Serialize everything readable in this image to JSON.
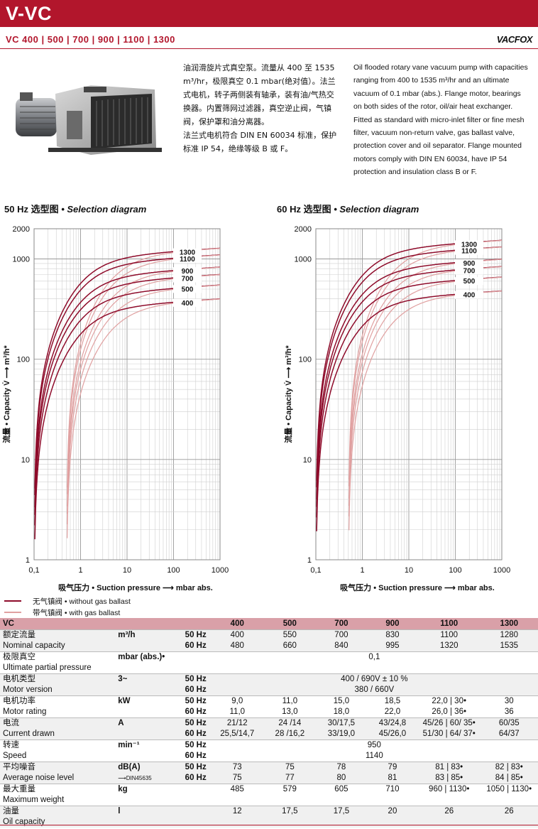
{
  "header": {
    "title": "V-VC",
    "models": "VC 400  |  500  |  700  |  900  |  1100  |  1300",
    "logo": "VACFOX"
  },
  "desc_cn": [
    "油润滑旋片式真空泵。流量从 400 至 1535 m³/hr，极限真空 0.1 mbar(绝对值）。法兰式电机，转子两侧装有轴承，装有油/气热交换器。内置筛网过滤器，真空逆止阀，气镇阀，保护罩和油分离器。",
    "法兰式电机符合 DIN  EN  60034 标准，保护标准 IP 54，绝缘等级 B 或 F。"
  ],
  "desc_en": "Oil flooded rotary vane vacuum pump with capacities ranging from 400 to 1535 m³/hr and an ultimate vacuum of 0.1 mbar (abs.). Flange motor, bearings on both sides of the rotor, oil/air heat exchanger. Fitted as standard with micro-inlet filter or fine mesh filter, vacuum non-return valve, gas ballast valve, protection cover and oil separator. Flange mounted motors comply with DIN EN 60034, have IP 54 protection and insulation class B or F.",
  "charts_text": {
    "left_title_cn": "50 Hz 选型图",
    "left_title_en": "• Selection diagram",
    "right_title_cn": "60 Hz 选型图",
    "right_title_en": "• Selection diagram",
    "ylabel": "流量 • Capacity V̇ ⟶ m³/h*",
    "xlabel": "吸气压力 • Suction pressure ⟶ mbar abs."
  },
  "chart_data": [
    {
      "type": "line",
      "title": "50 Hz 选型图 • Selection diagram",
      "xlabel": "吸气压力 • Suction pressure ⟶ mbar abs.",
      "ylabel": "流量 • Capacity V̇ ⟶ m³/h*",
      "x_scale": "log",
      "y_scale": "log",
      "xlim": [
        0.1,
        1000
      ],
      "ylim": [
        1,
        2000
      ],
      "x_ticks": [
        0.1,
        1,
        10,
        100,
        1000
      ],
      "x_tick_labels": [
        "0,1",
        "1",
        "10",
        "100",
        "1000"
      ],
      "y_ticks": [
        1,
        10,
        100,
        1000,
        2000
      ],
      "y_tick_labels": [
        "1",
        "10",
        "100",
        "1000",
        "2000"
      ],
      "grid": true,
      "series": [
        {
          "name": "1300",
          "max": 1280
        },
        {
          "name": "1100",
          "max": 1100
        },
        {
          "name": "900",
          "max": 830
        },
        {
          "name": "700",
          "max": 700
        },
        {
          "name": "500",
          "max": 550
        },
        {
          "name": "400",
          "max": 400
        }
      ],
      "curves": [
        "无气镇阀 • without gas ballast",
        "带气镇阀 • with gas ballast"
      ]
    },
    {
      "type": "line",
      "title": "60 Hz 选型图 • Selection diagram",
      "xlabel": "吸气压力 • Suction pressure ⟶ mbar abs.",
      "ylabel": "流量 • Capacity V̇ ⟶ m³/h*",
      "x_scale": "log",
      "y_scale": "log",
      "xlim": [
        0.1,
        1000
      ],
      "ylim": [
        1,
        2000
      ],
      "x_ticks": [
        0.1,
        1,
        10,
        100,
        1000
      ],
      "x_tick_labels": [
        "0,1",
        "1",
        "10",
        "100",
        "1000"
      ],
      "y_ticks": [
        1,
        10,
        100,
        1000,
        2000
      ],
      "y_tick_labels": [
        "1",
        "10",
        "100",
        "1000",
        "2000"
      ],
      "grid": true,
      "series": [
        {
          "name": "1300",
          "max": 1535
        },
        {
          "name": "1100",
          "max": 1320
        },
        {
          "name": "900",
          "max": 995
        },
        {
          "name": "700",
          "max": 840
        },
        {
          "name": "500",
          "max": 660
        },
        {
          "name": "400",
          "max": 480
        }
      ],
      "curves": [
        "无气镇阀 • without gas ballast",
        "带气镇阀 • with gas ballast"
      ]
    }
  ],
  "legend": {
    "without": "无气镇阀 • without gas ballast",
    "with": "带气镇阀 • with gas ballast",
    "colors": {
      "without": "#8e0b2a",
      "with": "#e0a0a0"
    }
  },
  "table": {
    "head": [
      "VC",
      "400",
      "500",
      "700",
      "900",
      "1100",
      "1300"
    ],
    "rows": [
      {
        "cn": "额定流量",
        "en": "Nominal capacity",
        "unit": "m³/h",
        "r50": [
          "400",
          "550",
          "700",
          "830",
          "1100",
          "1280"
        ],
        "r60": [
          "480",
          "660",
          "840",
          "995",
          "1320",
          "1535"
        ]
      },
      {
        "cn": "极限真空",
        "en": "Ultimate partial pressure",
        "unit": "mbar (abs.)•",
        "span": "0,1"
      },
      {
        "cn": "电机类型",
        "en": "Motor version",
        "unit": "3~",
        "s50": "400 / 690V ± 10 %",
        "s60": "380 / 660V"
      },
      {
        "cn": "电机功率",
        "en": "Motor rating",
        "unit": "kW",
        "r50": [
          "9,0",
          "11,0",
          "15,0",
          "18,5",
          "22,0 | 30•",
          "30"
        ],
        "r60": [
          "11,0",
          "13,0",
          "18,0",
          "22,0",
          "26,0 | 36•",
          "36"
        ]
      },
      {
        "cn": "电流",
        "en": "Current drawn",
        "unit": "A",
        "r50": [
          "21/12",
          "24 /14",
          "30/17,5",
          "43/24,8",
          "45/26 | 60/ 35•",
          "60/35"
        ],
        "r60": [
          "25,5/14,7",
          "28 /16,2",
          "33/19,0",
          "45/26,0",
          "51/30 | 64/ 37•",
          "64/37"
        ]
      },
      {
        "cn": "转速",
        "en": "Speed",
        "unit": "min⁻¹",
        "s50": "950",
        "s60": "1140"
      },
      {
        "cn": "平均噪音",
        "en": "Average noise level",
        "unit": "dB(A)",
        "unit2": "⟶DIN45635",
        "r50": [
          "73",
          "75",
          "78",
          "79",
          "81 | 83•",
          "82 | 83•"
        ],
        "r60": [
          "75",
          "77",
          "80",
          "81",
          "83 | 85•",
          "84 | 85•"
        ]
      },
      {
        "cn": "最大重量",
        "en": "Maximum weight",
        "unit": "kg",
        "single": [
          "485",
          "579",
          "605",
          "710",
          "960 | 1130•",
          "1050 | 1130•"
        ]
      },
      {
        "cn": "油量",
        "en": "Oil capacity",
        "unit": "l",
        "single": [
          "12",
          "17,5",
          "17,5",
          "20",
          "26",
          "26"
        ]
      }
    ],
    "hz50": "50 Hz",
    "hz60": "60 Hz"
  }
}
